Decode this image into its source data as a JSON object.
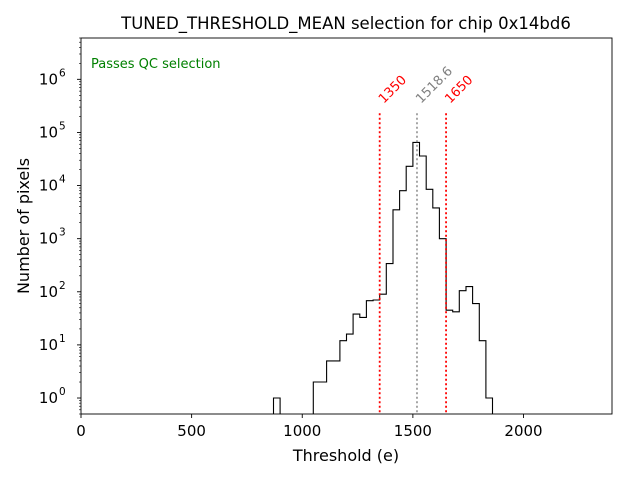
{
  "chart_data": {
    "type": "histogram",
    "title": "TUNED_THRESHOLD_MEAN selection for chip 0x14bd6",
    "xlabel": "Threshold (e)",
    "ylabel": "Number of pixels",
    "yscale": "log",
    "xlim": [
      0,
      2400
    ],
    "ylim": [
      0.5,
      6000000
    ],
    "x_ticks": [
      0,
      500,
      1000,
      1500,
      2000
    ],
    "y_ticks": [
      {
        "value": 1,
        "label": "10",
        "exp": "0"
      },
      {
        "value": 10,
        "label": "10",
        "exp": "1"
      },
      {
        "value": 100,
        "label": "10",
        "exp": "2"
      },
      {
        "value": 1000,
        "label": "10",
        "exp": "3"
      },
      {
        "value": 10000,
        "label": "10",
        "exp": "4"
      },
      {
        "value": 100000,
        "label": "10",
        "exp": "5"
      },
      {
        "value": 1000000,
        "label": "10",
        "exp": "6"
      }
    ],
    "bin_width": 30,
    "bin_start": 870,
    "counts": [
      1,
      0,
      0,
      0,
      0,
      0,
      2,
      2,
      5,
      5,
      12,
      16,
      38,
      33,
      68,
      70,
      90,
      340,
      3500,
      8000,
      23000,
      65000,
      36000,
      8500,
      3800,
      1000,
      45,
      42,
      105,
      125,
      60,
      12,
      1
    ],
    "annotation": {
      "text": "Passes QC selection",
      "color": "#008000"
    },
    "lines": [
      {
        "x": 1350,
        "label": "1350",
        "color": "#ff0000"
      },
      {
        "x": 1518.6,
        "label": "1518.6",
        "color": "#808080"
      },
      {
        "x": 1650,
        "label": "1650",
        "color": "#ff0000"
      }
    ]
  }
}
